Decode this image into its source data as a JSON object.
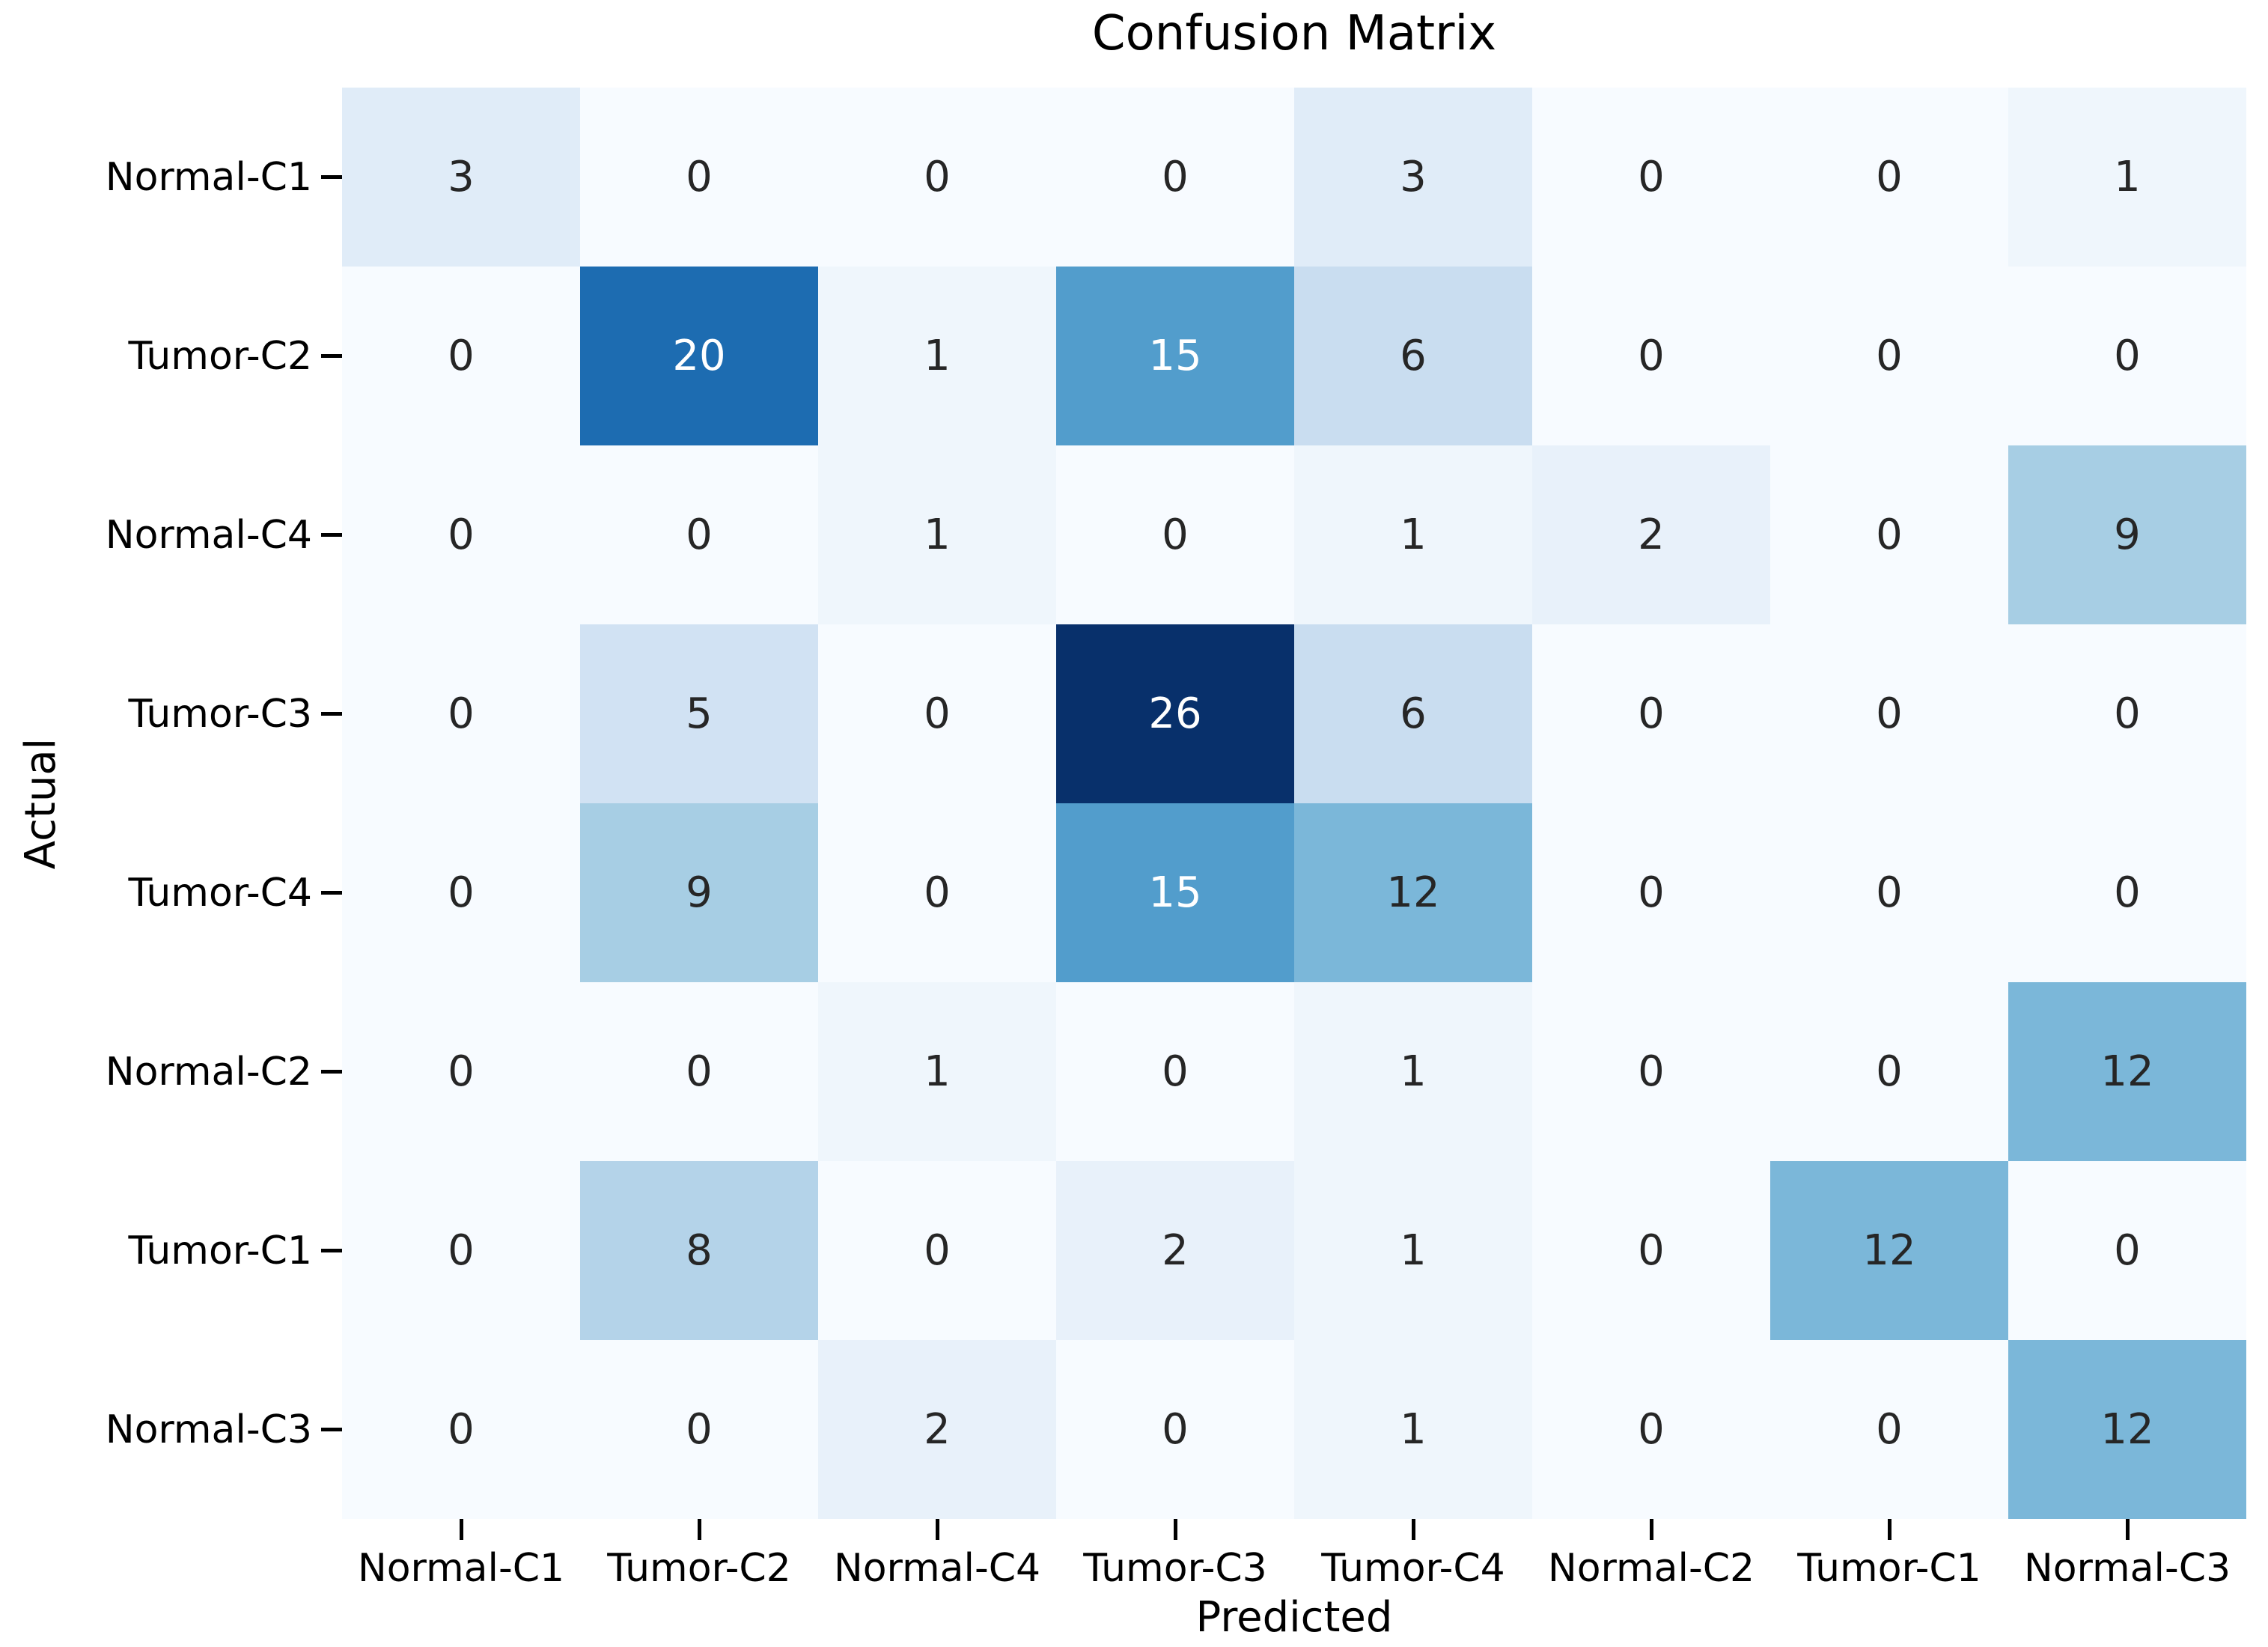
{
  "chart_data": {
    "type": "heatmap",
    "title": "Confusion Matrix",
    "xlabel": "Predicted",
    "ylabel": "Actual",
    "x_tick_labels": [
      "Normal-C1",
      "Tumor-C2",
      "Normal-C4",
      "Tumor-C3",
      "Tumor-C4",
      "Normal-C2",
      "Tumor-C1",
      "Normal-C3"
    ],
    "y_tick_labels": [
      "Normal-C1",
      "Tumor-C2",
      "Normal-C4",
      "Tumor-C3",
      "Tumor-C4",
      "Normal-C2",
      "Tumor-C1",
      "Normal-C3"
    ],
    "matrix": [
      [
        3,
        0,
        0,
        0,
        3,
        0,
        0,
        1
      ],
      [
        0,
        20,
        1,
        15,
        6,
        0,
        0,
        0
      ],
      [
        0,
        0,
        1,
        0,
        1,
        2,
        0,
        9
      ],
      [
        0,
        5,
        0,
        26,
        6,
        0,
        0,
        0
      ],
      [
        0,
        9,
        0,
        15,
        12,
        0,
        0,
        0
      ],
      [
        0,
        0,
        1,
        0,
        1,
        0,
        0,
        12
      ],
      [
        0,
        8,
        0,
        2,
        1,
        0,
        12,
        0
      ],
      [
        0,
        0,
        2,
        0,
        1,
        0,
        0,
        12
      ]
    ],
    "colormap": "Blues",
    "vmin": 0,
    "vmax": 26,
    "value_colors": {
      "0": "#f7fbff",
      "1": "#eff6fc",
      "2": "#e8f1fa",
      "3": "#e0ecf8",
      "5": "#d1e2f3",
      "6": "#c9ddf0",
      "8": "#b4d3e9",
      "9": "#a7cee4",
      "12": "#7bb7d9",
      "15": "#529dcc",
      "20": "#1d6cb1",
      "26": "#08306b"
    },
    "white_text_threshold": 13,
    "cell_text_dark": "#262626",
    "cell_text_light": "#ffffff",
    "grid": false,
    "legend": "none"
  }
}
